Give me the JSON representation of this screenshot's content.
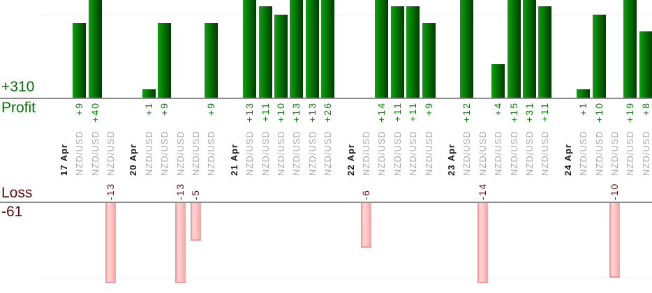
{
  "summary": {
    "profit_total": "+310",
    "profit_label": "Profit",
    "loss_label": "Loss",
    "loss_total": "-61"
  },
  "chart_data": {
    "type": "bar",
    "orientation": "dual-axis profit above baseline, loss below second baseline",
    "column_symbol": "NZD/USD",
    "groups": [
      {
        "date": "17 Apr",
        "trades": [
          {
            "symbol": "NZD/USD",
            "value": 9
          },
          {
            "symbol": "NZD/USD",
            "value": 40
          },
          {
            "symbol": "NZD/USD",
            "value": -13
          }
        ]
      },
      {
        "date": "20 Apr",
        "trades": [
          {
            "symbol": "NZD/USD",
            "value": 1
          },
          {
            "symbol": "NZD/USD",
            "value": 9
          },
          {
            "symbol": "NZD/USD",
            "value": -13
          },
          {
            "symbol": "NZD/USD",
            "value": -5
          },
          {
            "symbol": "NZD/USD",
            "value": 9
          }
        ]
      },
      {
        "date": "21 Apr",
        "trades": [
          {
            "symbol": "NZD/USD",
            "value": 13
          },
          {
            "symbol": "NZD/USD",
            "value": 11
          },
          {
            "symbol": "NZD/USD",
            "value": 10
          },
          {
            "symbol": "NZD/USD",
            "value": 13
          },
          {
            "symbol": "NZD/USD",
            "value": 13
          },
          {
            "symbol": "NZD/USD",
            "value": 26
          }
        ]
      },
      {
        "date": "22 Apr",
        "trades": [
          {
            "symbol": "NZD/USD",
            "value": -6
          },
          {
            "symbol": "NZD/USD",
            "value": 14
          },
          {
            "symbol": "NZD/USD",
            "value": 11
          },
          {
            "symbol": "NZD/USD",
            "value": 11
          },
          {
            "symbol": "NZD/USD",
            "value": 9
          }
        ]
      },
      {
        "date": "23 Apr",
        "trades": [
          {
            "symbol": "NZD/USD",
            "value": 12
          },
          {
            "symbol": "NZD/USD",
            "value": -14
          },
          {
            "symbol": "NZD/USD",
            "value": 4
          },
          {
            "symbol": "NZD/USD",
            "value": 15
          },
          {
            "symbol": "NZD/USD",
            "value": 31
          },
          {
            "symbol": "NZD/USD",
            "value": 11
          }
        ]
      },
      {
        "date": "24 Apr",
        "trades": [
          {
            "symbol": "NZD/USD",
            "value": 1
          },
          {
            "symbol": "NZD/USD",
            "value": 10
          },
          {
            "symbol": "NZD/USD",
            "value": -10
          },
          {
            "symbol": "NZD/USD",
            "value": 19
          },
          {
            "symbol": "NZD/USD",
            "value": 8
          }
        ]
      }
    ],
    "totals": {
      "profit": 310,
      "loss": -61
    },
    "gridlines": {
      "profit_value": 10,
      "loss_value": 10
    },
    "colors": {
      "profit_text": "#007000",
      "profit_value_text": "#008000",
      "loss_text": "#5a0a0a",
      "loss_value_text": "#5c1212",
      "date_text": "#1a1a1a",
      "symbol_text": "#a8a8a8",
      "axis_line": "#8c8c8c",
      "gridline": "#ececec",
      "profit_bar_gradient": [
        "#0ea00e",
        "#077407",
        "#033903"
      ],
      "loss_bar_gradient": [
        "#ffc6c6",
        "#ffd2d2",
        "#f5a2a2"
      ],
      "loss_bar_edge": "#ef9a9a"
    }
  }
}
